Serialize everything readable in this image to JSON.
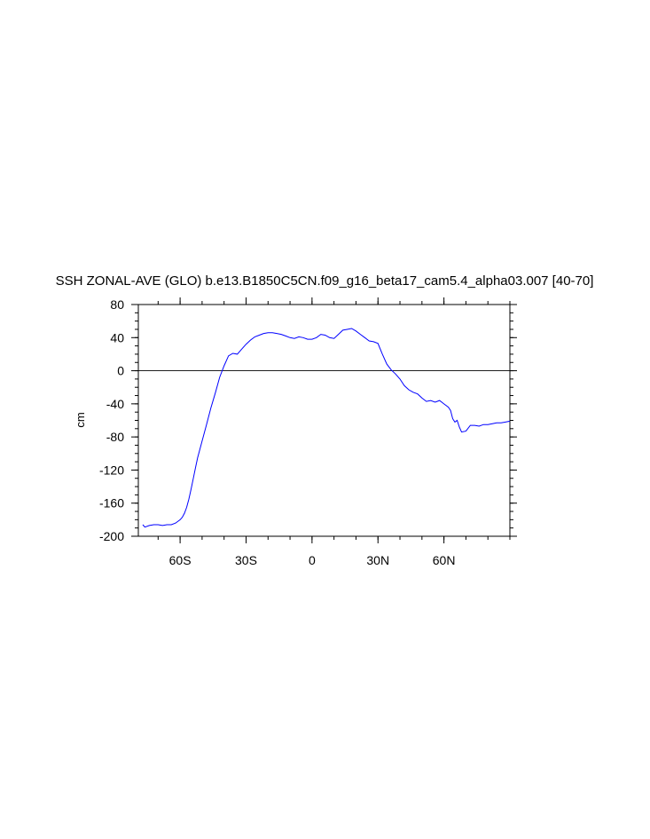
{
  "chart_data": {
    "type": "line",
    "title": "SSH ZONAL-AVE (GLO) b.e13.B1850C5CN.f09_g16_beta17_cam5.4_alpha03.007 [40-70]",
    "xlabel": "",
    "ylabel": "cm",
    "xlim": [
      -79,
      90
    ],
    "ylim": [
      -200,
      80
    ],
    "y_ticks": [
      80,
      40,
      0,
      -40,
      -80,
      -120,
      -160,
      -200
    ],
    "y_tick_labels": [
      "80",
      "40",
      "0",
      "-40",
      "-80",
      "-120",
      "-160",
      "-200"
    ],
    "x_ticks": [
      -60,
      -30,
      0,
      30,
      60
    ],
    "x_tick_labels": [
      "60S",
      "30S",
      "0",
      "30N",
      "60N"
    ],
    "reference_line": 0,
    "grid": false,
    "series": [
      {
        "color": "#0000ff",
        "x": [
          -77,
          -76,
          -74,
          -72,
          -70,
          -68,
          -66,
          -64,
          -62,
          -60,
          -59,
          -58,
          -57,
          -56,
          -55,
          -54,
          -53,
          -52,
          -50,
          -48,
          -46,
          -44,
          -42,
          -40,
          -39,
          -38,
          -36,
          -34,
          -32,
          -30,
          -28,
          -26,
          -24,
          -22,
          -20,
          -18,
          -16,
          -14,
          -12,
          -10,
          -8,
          -6,
          -4,
          -2,
          0,
          2,
          4,
          6,
          8,
          10,
          12,
          14,
          16,
          18,
          20,
          22,
          24,
          26,
          28,
          30,
          32,
          34,
          36,
          38,
          40,
          42,
          44,
          46,
          48,
          50,
          52,
          54,
          56,
          58,
          60,
          62,
          63,
          64,
          65,
          66,
          67,
          68,
          70,
          72,
          74,
          76,
          78,
          80,
          82,
          84,
          86,
          88,
          90
        ],
        "y": [
          -186,
          -189,
          -187,
          -186,
          -186,
          -187,
          -186,
          -186,
          -184,
          -180,
          -177,
          -172,
          -165,
          -155,
          -143,
          -130,
          -117,
          -105,
          -85,
          -65,
          -45,
          -27,
          -8,
          6,
          12,
          18,
          21,
          20,
          26,
          32,
          37,
          41,
          43,
          45,
          46,
          46,
          45,
          44,
          42,
          40,
          39,
          41,
          40,
          38,
          38,
          40,
          44,
          43,
          40,
          39,
          44,
          49,
          50,
          51,
          48,
          44,
          40,
          36,
          35,
          33,
          20,
          8,
          1,
          -4,
          -10,
          -18,
          -23,
          -26,
          -28,
          -33,
          -37,
          -36,
          -38,
          -36,
          -40,
          -44,
          -48,
          -58,
          -62,
          -60,
          -68,
          -74,
          -73,
          -66,
          -66,
          -67,
          -65,
          -65,
          -64,
          -63,
          -63,
          -62,
          -61
        ]
      }
    ]
  }
}
